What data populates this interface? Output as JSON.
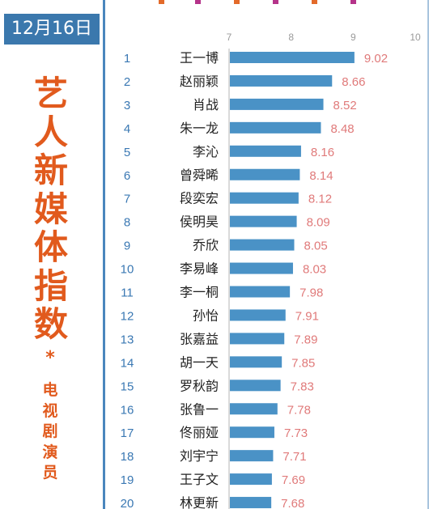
{
  "date": "12月16日",
  "title_chars": [
    "艺",
    "人",
    "新",
    "媒",
    "体",
    "指",
    "数"
  ],
  "separator": "*",
  "subtitle_chars": [
    "电",
    "视",
    "剧",
    "演",
    "员"
  ],
  "colors": {
    "bar": "#4a92c6",
    "value_label": "#e07a7a",
    "rank": "#3a78b3",
    "name": "#222222",
    "title": "#e15a1d",
    "badge": "#3b78ad",
    "axis_tick": "#9a9a9a"
  },
  "chart_data": {
    "type": "bar",
    "orientation": "horizontal",
    "xlim": [
      7,
      10
    ],
    "xticks": [
      7,
      8,
      9,
      10
    ],
    "ranks": [
      1,
      2,
      3,
      4,
      5,
      6,
      7,
      8,
      9,
      10,
      11,
      12,
      13,
      14,
      15,
      16,
      17,
      18,
      19,
      20
    ],
    "categories": [
      "王一博",
      "赵丽颖",
      "肖战",
      "朱一龙",
      "李沁",
      "曾舜晞",
      "段奕宏",
      "侯明昊",
      "乔欣",
      "李易峰",
      "李一桐",
      "孙怡",
      "张嘉益",
      "胡一天",
      "罗秋韵",
      "张鲁一",
      "佟丽娅",
      "刘宇宁",
      "王子文",
      "林更新"
    ],
    "values": [
      9.02,
      8.66,
      8.52,
      8.48,
      8.16,
      8.14,
      8.12,
      8.09,
      8.05,
      8.03,
      7.98,
      7.91,
      7.89,
      7.85,
      7.83,
      7.78,
      7.73,
      7.71,
      7.69,
      7.68
    ],
    "value_labels": [
      "9.02",
      "8.66",
      "8.52",
      "8.48",
      "8.16",
      "8.14",
      "8.12",
      "8.09",
      "8.05",
      "8.03",
      "7.98",
      "7.91",
      "7.89",
      "7.85",
      "7.83",
      "7.78",
      "7.73",
      "7.71",
      "7.69",
      "7.68"
    ]
  }
}
